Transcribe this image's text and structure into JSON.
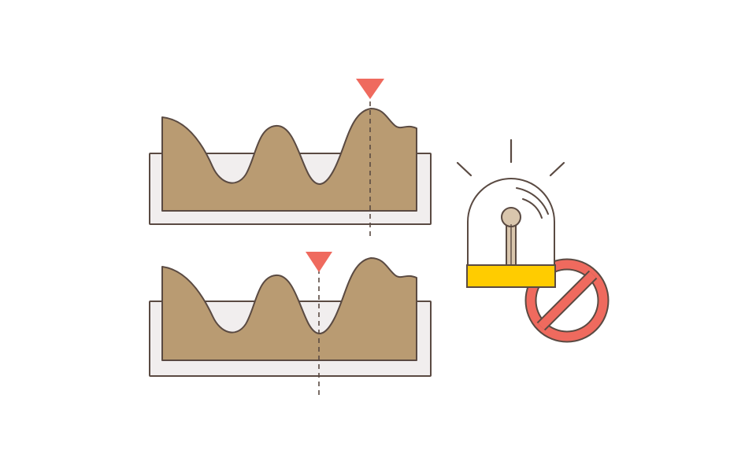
{
  "colors": {
    "background": "#ffffff",
    "tray_fill": "#f1eeee",
    "outline": "#5a4a42",
    "terrain_fill": "#b99b72",
    "marker": "#ef6a5e",
    "lamp_base": "#ffcc00",
    "lamp_stem": "#d9c6ad",
    "prohibit": "#ef6a5e"
  },
  "icons": {
    "top_panel": "terrain-profile-icon",
    "bottom_panel": "terrain-profile-icon",
    "top_marker": "triangle-marker-icon",
    "bottom_marker": "triangle-marker-icon",
    "alarm": "alarm-beacon-icon",
    "prohibit": "prohibited-icon"
  },
  "markers": {
    "top": {
      "position": "peak"
    },
    "bottom": {
      "position": "valley"
    }
  },
  "alarm": {
    "state": "disabled"
  }
}
